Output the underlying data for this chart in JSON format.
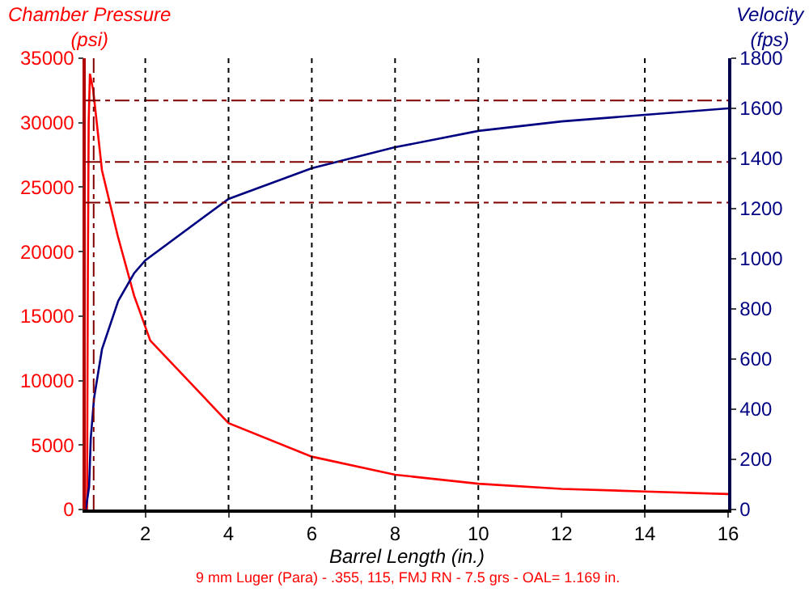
{
  "chart_data": {
    "type": "line",
    "xlabel": "Barrel Length (in.)",
    "ylabel": "Chamber Pressure\n(psi)",
    "y2label": "Velocity\n(fps)",
    "series": [
      {
        "name": null,
        "color": "#ff0000",
        "x": [
          0.6,
          0.62,
          0.64,
          0.67,
          0.75,
          0.96,
          1.34,
          1.73,
          2.12,
          4,
          6,
          8,
          10,
          12,
          14,
          16
        ],
        "values": [
          0,
          18000,
          30000,
          33800,
          32500,
          26300,
          21200,
          16600,
          13100,
          6700,
          4100,
          2700,
          2000,
          1600,
          1400,
          1200
        ]
      },
      {
        "name": null,
        "color": "#000080",
        "axis": "y2",
        "x": [
          0.57,
          0.65,
          0.69,
          0.77,
          0.96,
          1.35,
          1.73,
          2,
          4,
          6,
          8,
          10,
          12,
          14,
          16
        ],
        "values": [
          0,
          90,
          284,
          445,
          639,
          832,
          942,
          994,
          1239,
          1361,
          1445,
          1510,
          1548,
          1574,
          1600
        ]
      }
    ],
    "xlim": [
      0.57,
      16
    ],
    "xticks": [
      2,
      4,
      6,
      8,
      10,
      12,
      14,
      16
    ],
    "ylim": [
      0,
      35000
    ],
    "yticks": [
      0,
      5000,
      10000,
      15000,
      20000,
      25000,
      30000,
      35000
    ],
    "y2lim": [
      0,
      1800
    ],
    "y2ticks": [
      0,
      200,
      400,
      600,
      800,
      1000,
      1200,
      1400,
      1600,
      1800
    ],
    "ref_lines": [
      {
        "axis": "y",
        "value": 31730,
        "label": null,
        "color": "#800000",
        "line_style": "dashed"
      },
      {
        "axis": "y",
        "value": 26950,
        "label": null,
        "color": "#800000",
        "line_style": "dashed"
      },
      {
        "axis": "y",
        "value": 23800,
        "label": null,
        "color": "#800000",
        "line_style": "dashed"
      },
      {
        "axis": "x",
        "value": 0.76,
        "label": null,
        "color": "#800000",
        "line_style": "dashed"
      },
      {
        "axis": "x",
        "value": 2,
        "label": null,
        "color": "#000000",
        "line_style": "dotted"
      },
      {
        "axis": "x",
        "value": 4,
        "label": null,
        "color": "#000000",
        "line_style": "dotted"
      },
      {
        "axis": "x",
        "value": 6,
        "label": null,
        "color": "#000000",
        "line_style": "dotted"
      },
      {
        "axis": "x",
        "value": 8,
        "label": null,
        "color": "#000000",
        "line_style": "dotted"
      },
      {
        "axis": "x",
        "value": 10,
        "label": null,
        "color": "#000000",
        "line_style": "dotted"
      },
      {
        "axis": "x",
        "value": 14,
        "label": null,
        "color": "#000000",
        "line_style": "dotted"
      }
    ],
    "annotations": [
      "9 mm Luger (Para) - .355, 115, FMJ RN - 7.5 grs - OAL= 1.169 in."
    ],
    "marker": "none",
    "line_style": "solid"
  }
}
